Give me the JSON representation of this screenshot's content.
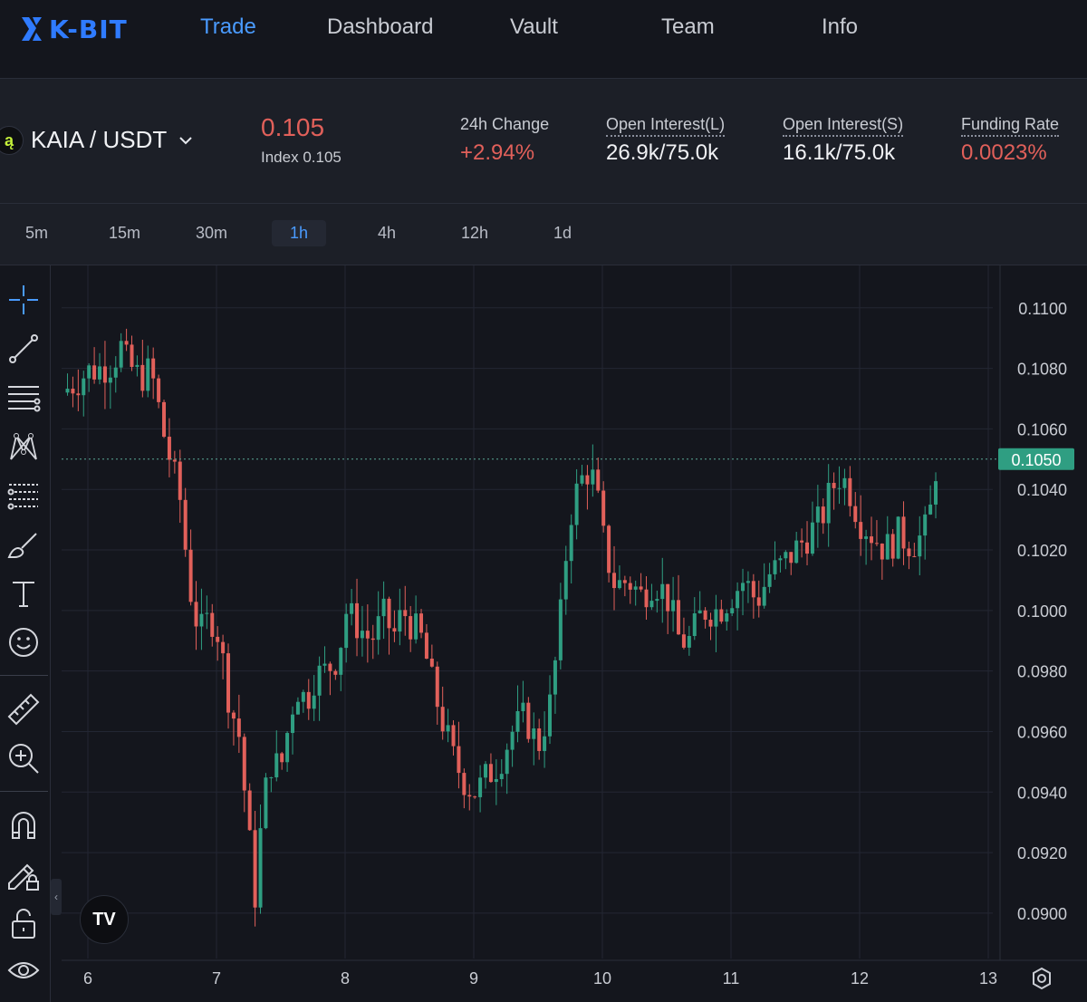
{
  "nav": {
    "brand": "K-BIT",
    "items": [
      {
        "label": "Trade",
        "active": true
      },
      {
        "label": "Dashboard",
        "active": false
      },
      {
        "label": "Vault",
        "active": false
      },
      {
        "label": "Team",
        "active": false
      },
      {
        "label": "Info",
        "active": false
      }
    ]
  },
  "ticker": {
    "pair_icon": "ą",
    "pair": "KAIA / USDT",
    "price": "0.105",
    "index_label": "Index",
    "index_value": "0.105",
    "change_label": "24h Change",
    "change_value": "+2.94%",
    "oi_long_label": "Open Interest(L)",
    "oi_long_value": "26.9k/75.0k",
    "oi_short_label": "Open Interest(S)",
    "oi_short_value": "16.1k/75.0k",
    "funding_label": "Funding Rate",
    "funding_value": "0.0023%"
  },
  "timeframes": [
    "5m",
    "15m",
    "30m",
    "1h",
    "4h",
    "12h",
    "1d"
  ],
  "active_timeframe": "1h",
  "tools": [
    "crosshair-icon",
    "trendline-icon",
    "horizontal-lines-icon",
    "pattern-icon",
    "fib-icon",
    "brush-icon",
    "text-icon",
    "emoji-icon",
    "ruler-icon",
    "zoom-in-icon",
    "magnet-icon",
    "lock-drawing-icon",
    "unlock-icon",
    "eye-icon"
  ],
  "colors": {
    "up": "#2f9e82",
    "down": "#e1605a",
    "accent": "#4a9bff",
    "last_price_bg": "#2f9e82"
  },
  "chart_data": {
    "type": "candlestick",
    "symbol": "KAIA / USDT",
    "interval": "1h",
    "x_ticks": [
      "6",
      "7",
      "8",
      "9",
      "10",
      "11",
      "12",
      "13"
    ],
    "y_ticks": [
      "0.1100",
      "0.1080",
      "0.1060",
      "0.1040",
      "0.1020",
      "0.1000",
      "0.0980",
      "0.0960",
      "0.0940",
      "0.0920",
      "0.0900"
    ],
    "ylim": [
      0.0885,
      0.1114
    ],
    "last_price_label": "0.1050",
    "last_price": 0.105,
    "day_range": [
      5.8,
      13.05
    ],
    "path": [
      [
        5.8,
        0.1072
      ],
      [
        5.92,
        0.1076
      ],
      [
        6.0,
        0.1079
      ],
      [
        6.1,
        0.108
      ],
      [
        6.2,
        0.1082
      ],
      [
        6.25,
        0.1088
      ],
      [
        6.3,
        0.1082
      ],
      [
        6.4,
        0.1077
      ],
      [
        6.48,
        0.1079
      ],
      [
        6.52,
        0.1074
      ],
      [
        6.58,
        0.106
      ],
      [
        6.65,
        0.1048
      ],
      [
        6.72,
        0.1036
      ],
      [
        6.78,
        0.1012
      ],
      [
        6.82,
        0.1
      ],
      [
        6.88,
        0.0993
      ],
      [
        6.95,
        0.0998
      ],
      [
        7.0,
        0.0995
      ],
      [
        7.05,
        0.0983
      ],
      [
        7.1,
        0.097
      ],
      [
        7.18,
        0.0958
      ],
      [
        7.24,
        0.093
      ],
      [
        7.3,
        0.0906
      ],
      [
        7.36,
        0.0935
      ],
      [
        7.42,
        0.095
      ],
      [
        7.5,
        0.0948
      ],
      [
        7.56,
        0.0962
      ],
      [
        7.62,
        0.0975
      ],
      [
        7.7,
        0.097
      ],
      [
        7.76,
        0.0978
      ],
      [
        7.85,
        0.098
      ],
      [
        7.95,
        0.0985
      ],
      [
        8.0,
        0.1
      ],
      [
        8.1,
        0.0995
      ],
      [
        8.2,
        0.099
      ],
      [
        8.3,
        0.0998
      ],
      [
        8.38,
        0.0992
      ],
      [
        8.45,
        0.1
      ],
      [
        8.52,
        0.0995
      ],
      [
        8.6,
        0.099
      ],
      [
        8.68,
        0.0975
      ],
      [
        8.76,
        0.0963
      ],
      [
        8.85,
        0.095
      ],
      [
        8.95,
        0.0942
      ],
      [
        9.02,
        0.094
      ],
      [
        9.1,
        0.0945
      ],
      [
        9.2,
        0.095
      ],
      [
        9.3,
        0.096
      ],
      [
        9.4,
        0.0965
      ],
      [
        9.5,
        0.0955
      ],
      [
        9.6,
        0.097
      ],
      [
        9.68,
        0.1
      ],
      [
        9.74,
        0.103
      ],
      [
        9.82,
        0.1042
      ],
      [
        9.9,
        0.1047
      ],
      [
        9.95,
        0.104
      ],
      [
        10.02,
        0.102
      ],
      [
        10.1,
        0.1008
      ],
      [
        10.2,
        0.101
      ],
      [
        10.3,
        0.1005
      ],
      [
        10.4,
        0.101
      ],
      [
        10.5,
        0.1005
      ],
      [
        10.6,
        0.099
      ],
      [
        10.68,
        0.099
      ],
      [
        10.78,
        0.1
      ],
      [
        10.9,
        0.1
      ],
      [
        11.0,
        0.1005
      ],
      [
        11.1,
        0.101
      ],
      [
        11.2,
        0.1003
      ],
      [
        11.3,
        0.1012
      ],
      [
        11.4,
        0.1015
      ],
      [
        11.5,
        0.102
      ],
      [
        11.6,
        0.1025
      ],
      [
        11.7,
        0.103
      ],
      [
        11.78,
        0.104
      ],
      [
        11.85,
        0.1045
      ],
      [
        11.92,
        0.104
      ],
      [
        12.0,
        0.103
      ],
      [
        12.1,
        0.1025
      ],
      [
        12.2,
        0.102
      ],
      [
        12.3,
        0.1025
      ],
      [
        12.4,
        0.1022
      ],
      [
        12.5,
        0.1025
      ],
      [
        12.55,
        0.1033
      ],
      [
        12.6,
        0.105
      ]
    ]
  }
}
